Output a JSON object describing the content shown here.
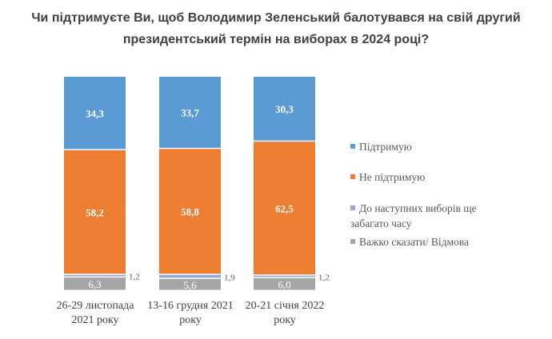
{
  "chart_data": {
    "type": "bar",
    "stacked": true,
    "title": "Чи підтримуєте Ви, щоб Володимир Зеленський балотувався на свій другий президентський термін на виборах в 2024 році?",
    "title_lines": [
      "Чи підтримуєте Ви, щоб Володимир Зеленський балотувався на свій другий",
      "президентський термін на виборах в 2024 році?"
    ],
    "categories": [
      [
        "26-29 листопада",
        "2021 року"
      ],
      [
        "13-16 грудня 2021",
        "року"
      ],
      [
        "20-21 січня 2022",
        "року"
      ]
    ],
    "series": [
      {
        "name": "Важко сказати/ Відмова",
        "values": [
          6.3,
          5.6,
          6.0
        ],
        "labels": [
          "6,3",
          "5,6",
          "6,0"
        ],
        "color": "#a5a5a5"
      },
      {
        "name": "До наступних виборів ще забагато часу",
        "values": [
          1.2,
          1.9,
          1.2
        ],
        "labels": [
          "1,2",
          "1,9",
          "1,2"
        ],
        "color": "#8faadc"
      },
      {
        "name": "Не підтримую",
        "values": [
          58.2,
          58.8,
          62.5
        ],
        "labels": [
          "58,2",
          "58,8",
          "62,5"
        ],
        "color": "#ed7d31"
      },
      {
        "name": "Підтримую",
        "values": [
          34.3,
          33.7,
          30.3
        ],
        "labels": [
          "34,3",
          "33,7",
          "30,3"
        ],
        "color": "#5b9bd5"
      }
    ],
    "ylim": [
      0,
      100
    ],
    "legend": "right",
    "legend_order": [
      "Підтримую",
      "Не підтримую",
      "До наступних виборів ще забагато часу",
      "Важко сказати/ Відмова"
    ]
  }
}
